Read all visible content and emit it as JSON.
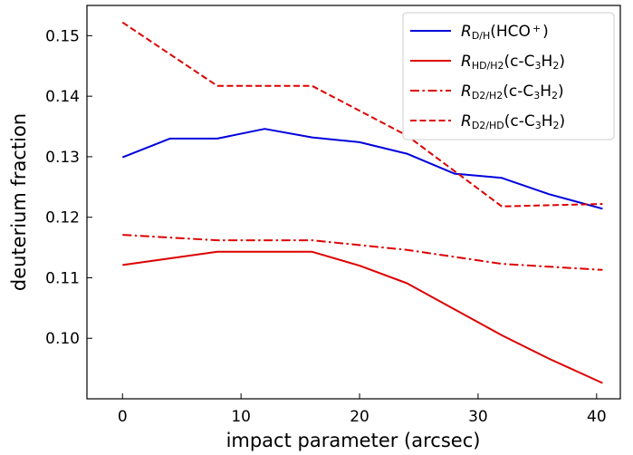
{
  "chart_data": {
    "type": "line",
    "xlabel": "impact parameter (arcsec)",
    "ylabel": "deuterium fraction",
    "xlim": [
      -3,
      42
    ],
    "ylim": [
      0.09,
      0.155
    ],
    "x_ticks": [
      0,
      10,
      20,
      30,
      40
    ],
    "y_ticks": [
      0.1,
      0.11,
      0.12,
      0.13,
      0.14,
      0.15
    ],
    "x_tick_labels": [
      "0",
      "10",
      "20",
      "30",
      "40"
    ],
    "y_tick_labels": [
      "0.10",
      "0.11",
      "0.12",
      "0.13",
      "0.14",
      "0.15"
    ],
    "grid": false,
    "legend_position": "top-right",
    "series": [
      {
        "name": "R_{D/H}(HCO+)",
        "label": {
          "italic": "R",
          "sub": "D/H",
          "main": "(HCO",
          "sup": "+",
          "tail": ")"
        },
        "color": "#0000dd",
        "dash": "solid",
        "x": [
          0,
          4,
          8,
          12,
          16,
          20,
          24,
          28,
          32,
          36,
          40.5
        ],
        "y": [
          0.1299,
          0.133,
          0.133,
          0.1346,
          0.1332,
          0.1324,
          0.1305,
          0.1272,
          0.1265,
          0.1238,
          0.1214
        ]
      },
      {
        "name": "R_{HD/H2}(c-C3H2)",
        "label": {
          "italic": "R",
          "sub": "HD/H2",
          "main": "(c-C",
          "sub2": "3",
          "mid": "H",
          "sub3": "2",
          "tail": ")"
        },
        "color": "#dd0000",
        "dash": "solid",
        "x": [
          0,
          8,
          16,
          20,
          24,
          28,
          32,
          36,
          40.5
        ],
        "y": [
          0.1121,
          0.1143,
          0.1143,
          0.112,
          0.1091,
          0.1048,
          0.1005,
          0.0966,
          0.0926
        ]
      },
      {
        "name": "R_{D2/H2}(c-C3H2)",
        "label": {
          "italic": "R",
          "sub": "D2/H2",
          "main": "(c-C",
          "sub2": "3",
          "mid": "H",
          "sub3": "2",
          "tail": ")"
        },
        "color": "#dd0000",
        "dash": "dashdot",
        "x": [
          0,
          8,
          16,
          24,
          32,
          40.5
        ],
        "y": [
          0.1171,
          0.1162,
          0.1162,
          0.1146,
          0.1123,
          0.1113
        ]
      },
      {
        "name": "R_{D2/HD}(c-C3H2)",
        "label": {
          "italic": "R",
          "sub": "D2/HD",
          "main": "(c-C",
          "sub2": "3",
          "mid": "H",
          "sub3": "2",
          "tail": ")"
        },
        "color": "#dd0000",
        "dash": "dashed",
        "x": [
          0,
          8,
          16,
          24,
          32,
          40.5
        ],
        "y": [
          0.1522,
          0.1417,
          0.1417,
          0.1335,
          0.1218,
          0.1222
        ]
      }
    ]
  }
}
